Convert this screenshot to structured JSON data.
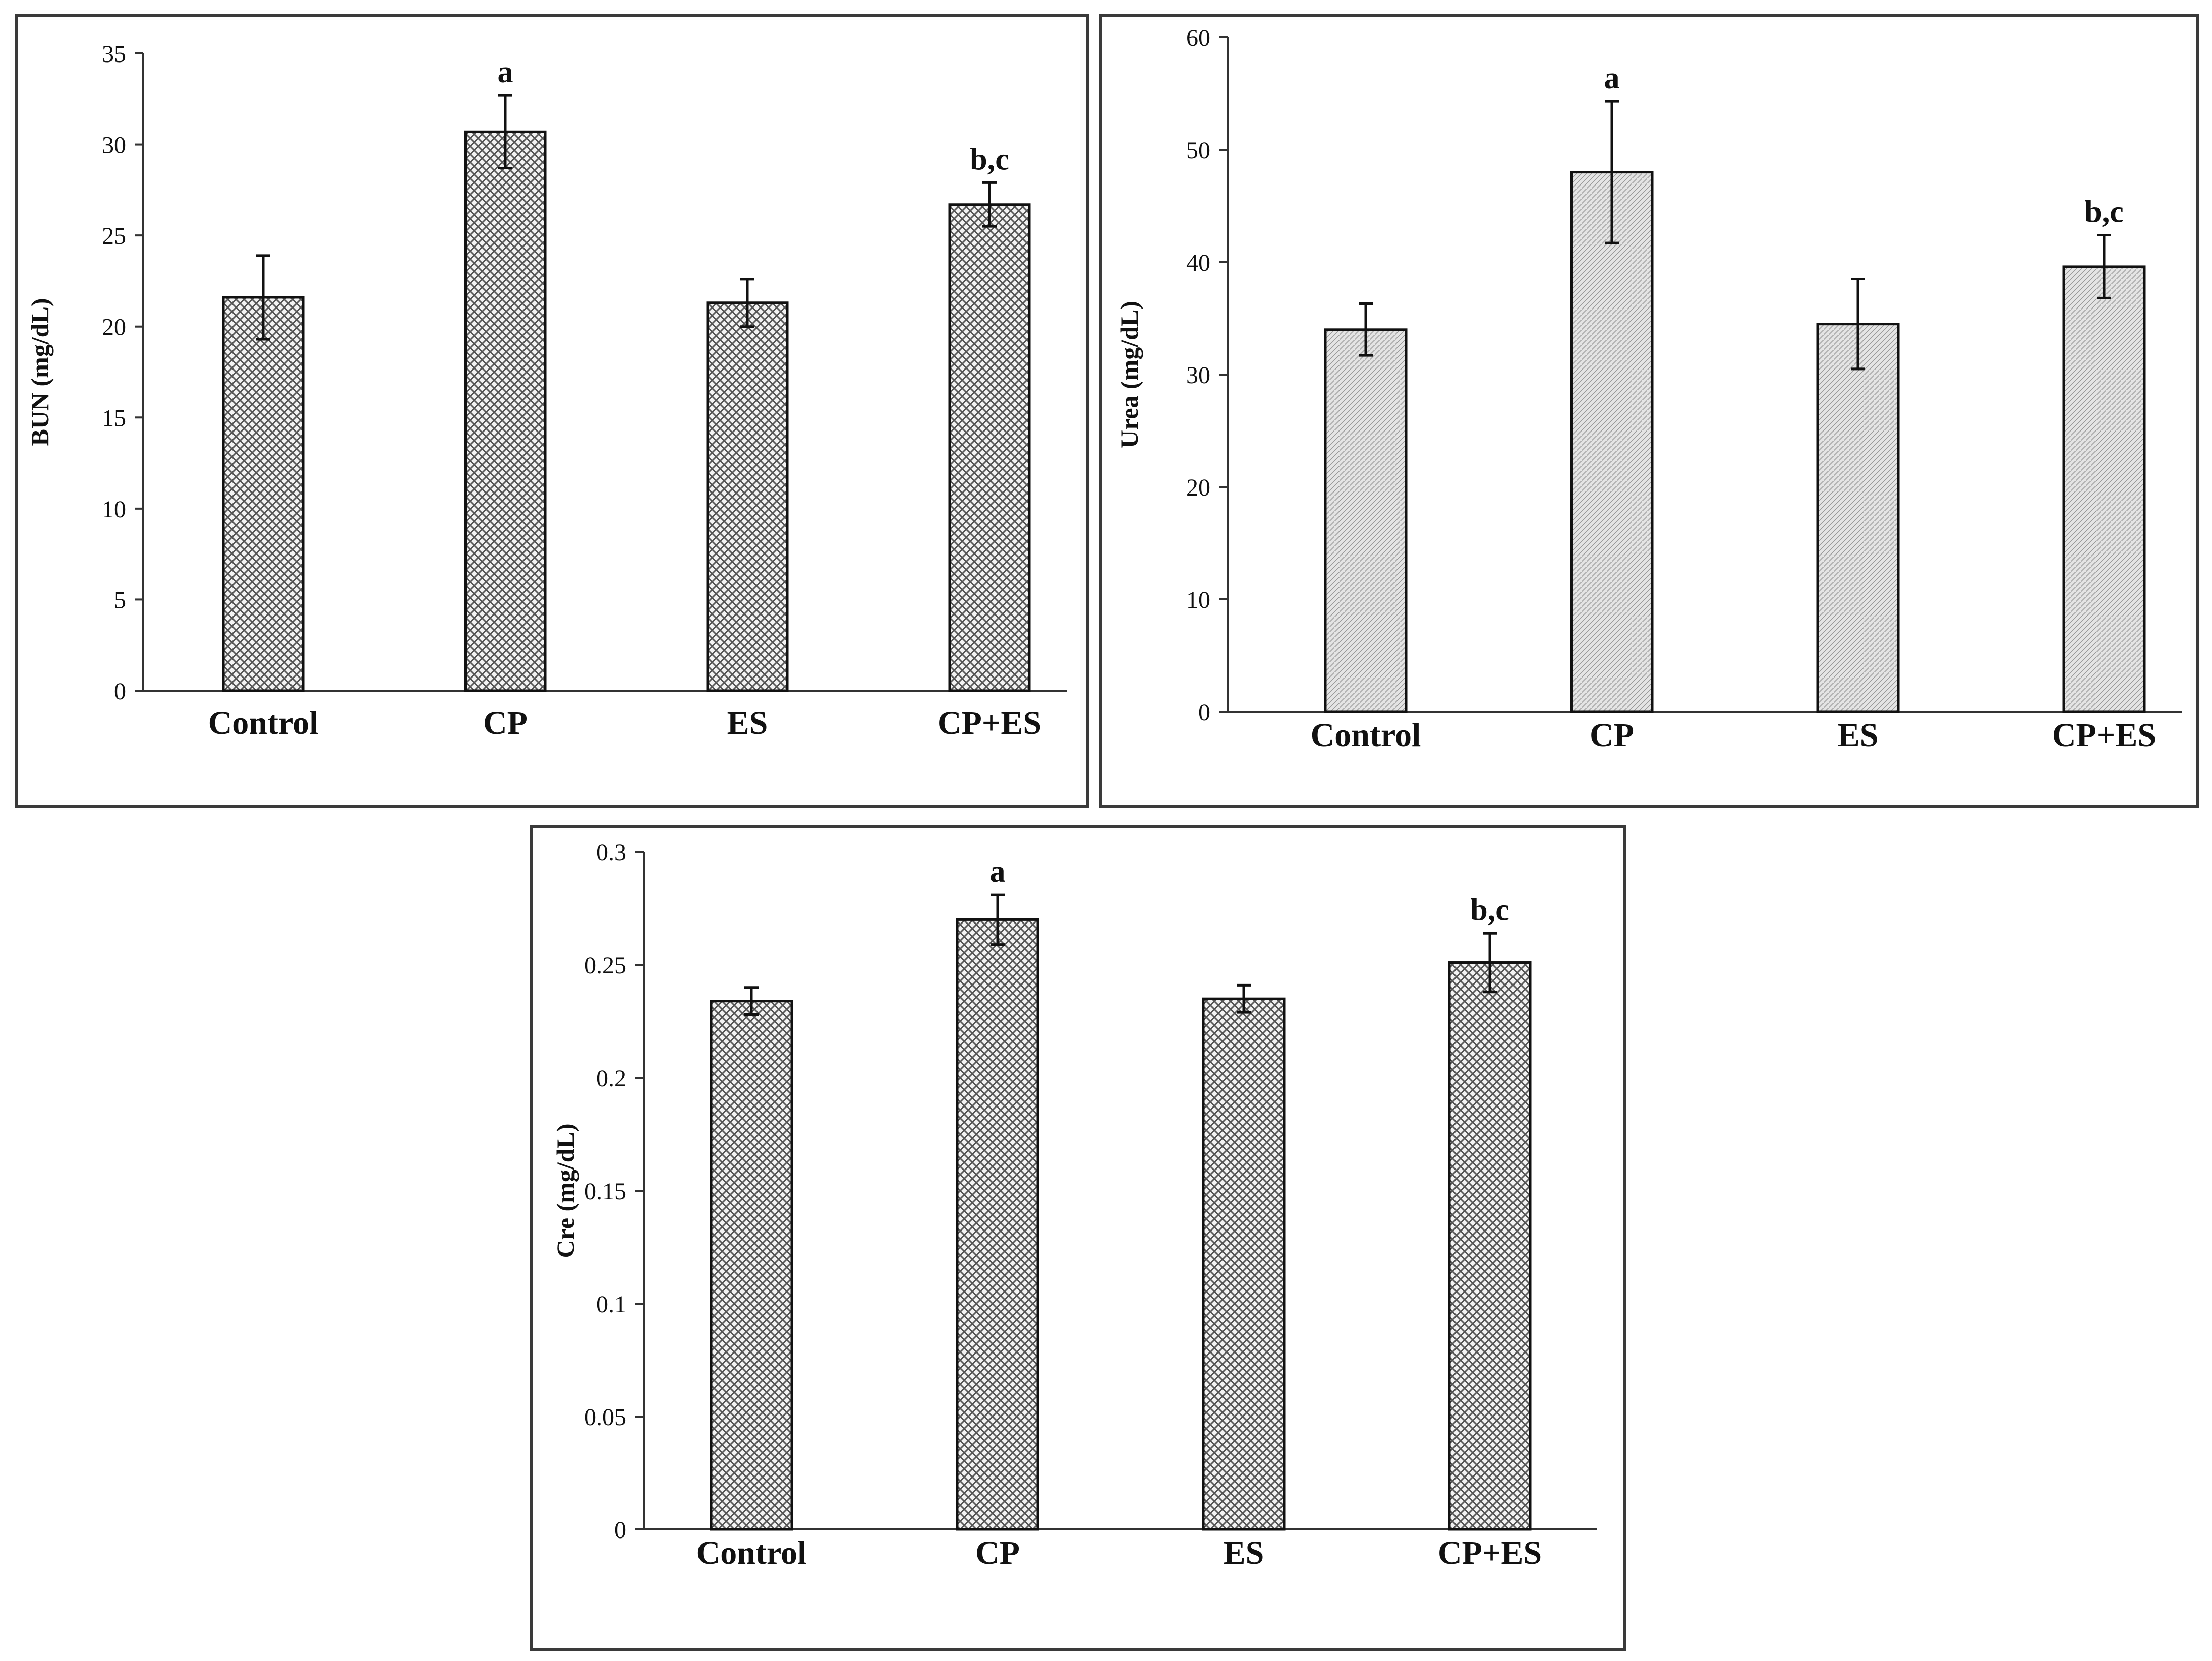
{
  "chart_data": [
    {
      "id": "bun",
      "type": "bar",
      "title": "",
      "xlabel": "",
      "ylabel": "BUN (mg/dL)",
      "ylim": [
        0,
        35
      ],
      "ticks": [
        0,
        5,
        10,
        15,
        20,
        25,
        30,
        35
      ],
      "categories": [
        "Control",
        "CP",
        "ES",
        "CP+ES"
      ],
      "values": [
        21.6,
        30.7,
        21.3,
        26.7
      ],
      "errors": [
        2.3,
        2.0,
        1.3,
        1.2
      ],
      "annotations": [
        "",
        "a",
        "",
        "b,c"
      ],
      "pattern": "dense"
    },
    {
      "id": "urea",
      "type": "bar",
      "title": "",
      "xlabel": "",
      "ylabel": "Urea (mg/dL)",
      "ylim": [
        0,
        60
      ],
      "ticks": [
        0,
        10,
        20,
        30,
        40,
        50,
        60
      ],
      "categories": [
        "Control",
        "CP",
        "ES",
        "CP+ES"
      ],
      "values": [
        34.0,
        48.0,
        34.5,
        39.6
      ],
      "errors": [
        2.3,
        6.3,
        4.0,
        2.8
      ],
      "annotations": [
        "",
        "a",
        "",
        "b,c"
      ],
      "pattern": "light"
    },
    {
      "id": "cre",
      "type": "bar",
      "title": "",
      "xlabel": "",
      "ylabel": "Cre (mg/dL)",
      "ylim": [
        0,
        0.3
      ],
      "ticks": [
        0,
        0.05,
        0.1,
        0.15,
        0.2,
        0.25,
        0.3
      ],
      "categories": [
        "Control",
        "CP",
        "ES",
        "CP+ES"
      ],
      "values": [
        0.234,
        0.27,
        0.235,
        0.251
      ],
      "errors": [
        0.006,
        0.011,
        0.006,
        0.013
      ],
      "annotations": [
        "",
        "a",
        "",
        "b,c"
      ],
      "pattern": "dense"
    }
  ]
}
